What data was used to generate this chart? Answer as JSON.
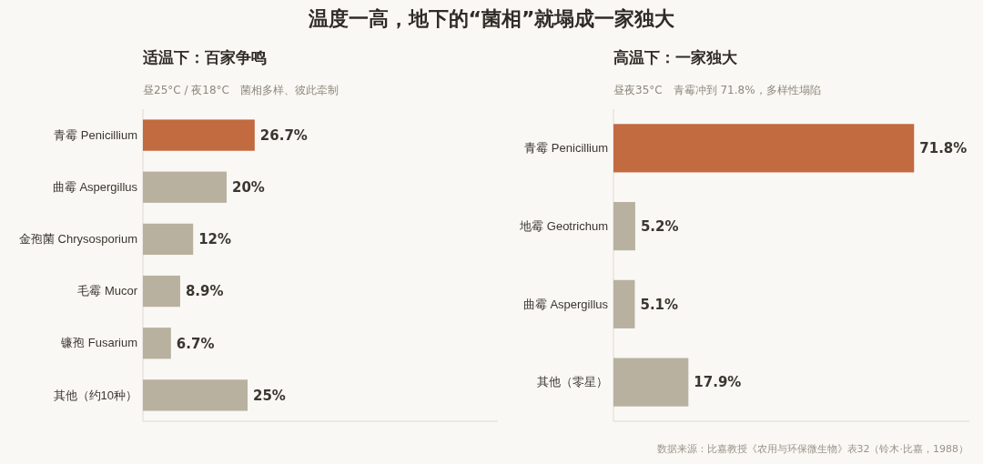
{
  "chart_data": [
    {
      "type": "bar",
      "orientation": "horizontal",
      "relative": false,
      "title": "适温下：百家争鸣",
      "subtitle": "昼25°C / 夜18°C　菌相多样、彼此牵制",
      "annotations": [
        "温度一高，地下的“菌相”就塌成一家独大"
      ],
      "categories": [
        "青霉 Penicillium",
        "曲霉 Aspergillus",
        "金孢菌 Chrysosporium",
        "毛霉 Mucor",
        "镰孢 Fusarium",
        "其他（约10种）"
      ],
      "values": [
        26.7,
        20,
        12,
        8.9,
        6.7,
        25
      ],
      "value_labels": [
        "26.7%",
        "20%",
        "12%",
        "8.9%",
        "6.7%",
        "25%"
      ],
      "colors": [
        "#c26a40",
        "#b8b1a0",
        "#b8b1a0",
        "#b8b1a0",
        "#b8b1a0",
        "#b8b1a0"
      ]
    },
    {
      "type": "bar",
      "orientation": "horizontal",
      "relative": false,
      "title": "高温下：一家独大",
      "subtitle": "昼夜35°C　青霉冲到 71.8%，多样性塌陷",
      "annotations": [
        "数据来源：比嘉教授《农用与环保微生物》表32（铃木·比嘉，1988）"
      ],
      "categories": [
        "青霉 Penicillium",
        "地霉 Geotrichum",
        "曲霉 Aspergillus",
        "其他（零星）"
      ],
      "values": [
        71.8,
        5.2,
        5.1,
        17.9
      ],
      "value_labels": [
        "71.8%",
        "5.2%",
        "5.1%",
        "17.9%"
      ],
      "colors": [
        "#c26a40",
        "#b8b1a0",
        "#b8b1a0",
        "#b8b1a0"
      ]
    }
  ]
}
